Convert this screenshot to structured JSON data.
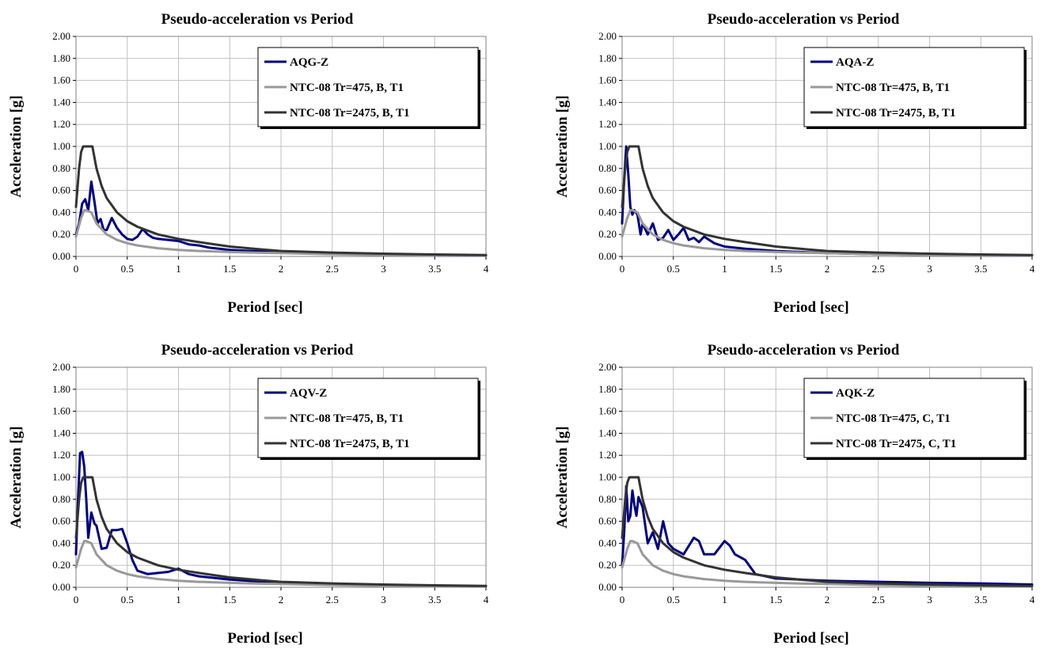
{
  "colors": {
    "record": "#000080",
    "spec_475": "#999999",
    "spec_2475": "#333333",
    "grid": "#c0c0c0"
  },
  "chart_data": [
    {
      "type": "line",
      "title": "Pseudo-acceleration vs Period",
      "xlabel": "Period [sec]",
      "ylabel": "Acceleration [g]",
      "xlim": [
        0,
        4
      ],
      "ylim": [
        0,
        2
      ],
      "xticks": [
        "0",
        "0.5",
        "1",
        "1.5",
        "2",
        "2.5",
        "3",
        "3.5",
        "4"
      ],
      "yticks": [
        "0.00",
        "0.20",
        "0.40",
        "0.60",
        "0.80",
        "1.00",
        "1.20",
        "1.40",
        "1.60",
        "1.80",
        "2.00"
      ],
      "grid": true,
      "legend_position": "top-right",
      "series": [
        {
          "name": "AQG-Z",
          "x": [
            0,
            0.03,
            0.06,
            0.09,
            0.12,
            0.15,
            0.18,
            0.21,
            0.24,
            0.27,
            0.3,
            0.35,
            0.4,
            0.45,
            0.5,
            0.55,
            0.6,
            0.65,
            0.7,
            0.75,
            0.8,
            0.9,
            1.0,
            1.1,
            1.2,
            1.3,
            1.5,
            1.7,
            2.0,
            2.5,
            3.0,
            3.5,
            4.0
          ],
          "y": [
            0.2,
            0.3,
            0.48,
            0.52,
            0.42,
            0.68,
            0.5,
            0.3,
            0.34,
            0.24,
            0.24,
            0.35,
            0.26,
            0.2,
            0.16,
            0.15,
            0.18,
            0.25,
            0.2,
            0.17,
            0.16,
            0.15,
            0.14,
            0.11,
            0.1,
            0.08,
            0.06,
            0.05,
            0.04,
            0.025,
            0.015,
            0.01,
            0.008
          ]
        },
        {
          "name": "NTC-08 Tr=475, B, T1",
          "x": [
            0,
            0.05,
            0.08,
            0.1,
            0.15,
            0.2,
            0.3,
            0.4,
            0.5,
            0.6,
            0.8,
            1.0,
            1.2,
            1.5,
            1.8,
            2.0,
            2.5,
            3.0,
            3.5,
            4.0
          ],
          "y": [
            0.18,
            0.35,
            0.42,
            0.42,
            0.4,
            0.3,
            0.2,
            0.15,
            0.12,
            0.1,
            0.075,
            0.06,
            0.05,
            0.04,
            0.033,
            0.03,
            0.02,
            0.013,
            0.01,
            0.008
          ]
        },
        {
          "name": "NTC-08 Tr=2475, B, T1",
          "x": [
            0,
            0.03,
            0.05,
            0.07,
            0.1,
            0.16,
            0.2,
            0.25,
            0.3,
            0.4,
            0.5,
            0.6,
            0.8,
            1.0,
            1.2,
            1.5,
            1.8,
            2.0,
            2.5,
            3.0,
            3.5,
            4.0
          ],
          "y": [
            0.45,
            0.8,
            0.95,
            1.0,
            1.0,
            1.0,
            0.8,
            0.64,
            0.53,
            0.4,
            0.32,
            0.27,
            0.2,
            0.16,
            0.13,
            0.09,
            0.065,
            0.05,
            0.035,
            0.025,
            0.018,
            0.012
          ]
        }
      ]
    },
    {
      "type": "line",
      "title": "Pseudo-acceleration vs Period",
      "xlabel": "Period [sec]",
      "ylabel": "Acceleration [g]",
      "xlim": [
        0,
        4
      ],
      "ylim": [
        0,
        2
      ],
      "xticks": [
        "0",
        "0.5",
        "1",
        "1.5",
        "2",
        "2.5",
        "3",
        "3.5",
        "4"
      ],
      "yticks": [
        "0.00",
        "0.20",
        "0.40",
        "0.60",
        "0.80",
        "1.00",
        "1.20",
        "1.40",
        "1.60",
        "1.80",
        "2.00"
      ],
      "grid": true,
      "legend_position": "top-right",
      "series": [
        {
          "name": "AQA-Z",
          "x": [
            0,
            0.02,
            0.04,
            0.06,
            0.08,
            0.1,
            0.12,
            0.15,
            0.18,
            0.2,
            0.25,
            0.3,
            0.35,
            0.4,
            0.45,
            0.5,
            0.55,
            0.6,
            0.65,
            0.7,
            0.75,
            0.8,
            0.9,
            1.0,
            1.1,
            1.2,
            1.5,
            2.0,
            2.5,
            3.0,
            3.5,
            4.0
          ],
          "y": [
            0.3,
            0.7,
            1.0,
            0.75,
            0.45,
            0.38,
            0.42,
            0.38,
            0.2,
            0.3,
            0.2,
            0.3,
            0.15,
            0.17,
            0.24,
            0.15,
            0.2,
            0.26,
            0.15,
            0.17,
            0.13,
            0.18,
            0.12,
            0.09,
            0.08,
            0.07,
            0.05,
            0.03,
            0.02,
            0.015,
            0.01,
            0.008
          ]
        },
        {
          "name": "NTC-08 Tr=475, B, T1",
          "x": [
            0,
            0.05,
            0.08,
            0.1,
            0.15,
            0.2,
            0.3,
            0.4,
            0.5,
            0.6,
            0.8,
            1.0,
            1.2,
            1.5,
            1.8,
            2.0,
            2.5,
            3.0,
            3.5,
            4.0
          ],
          "y": [
            0.18,
            0.35,
            0.42,
            0.42,
            0.4,
            0.3,
            0.2,
            0.15,
            0.12,
            0.1,
            0.075,
            0.06,
            0.05,
            0.04,
            0.033,
            0.03,
            0.02,
            0.013,
            0.01,
            0.008
          ]
        },
        {
          "name": "NTC-08 Tr=2475, B, T1",
          "x": [
            0,
            0.03,
            0.05,
            0.07,
            0.1,
            0.16,
            0.2,
            0.25,
            0.3,
            0.4,
            0.5,
            0.6,
            0.8,
            1.0,
            1.2,
            1.5,
            1.8,
            2.0,
            2.5,
            3.0,
            3.5,
            4.0
          ],
          "y": [
            0.45,
            0.8,
            0.95,
            1.0,
            1.0,
            1.0,
            0.8,
            0.64,
            0.53,
            0.4,
            0.32,
            0.27,
            0.2,
            0.16,
            0.13,
            0.09,
            0.065,
            0.05,
            0.035,
            0.025,
            0.018,
            0.012
          ]
        }
      ]
    },
    {
      "type": "line",
      "title": "Pseudo-acceleration vs Period",
      "xlabel": "Period [sec]",
      "ylabel": "Acceleration [g]",
      "xlim": [
        0,
        4
      ],
      "ylim": [
        0,
        2
      ],
      "xticks": [
        "0",
        "0.5",
        "1",
        "1.5",
        "2",
        "2.5",
        "3",
        "3.5",
        "4"
      ],
      "yticks": [
        "0.00",
        "0.20",
        "0.40",
        "0.60",
        "0.80",
        "1.00",
        "1.20",
        "1.40",
        "1.60",
        "1.80",
        "2.00"
      ],
      "grid": true,
      "legend_position": "top-right",
      "series": [
        {
          "name": "AQV-Z",
          "x": [
            0,
            0.02,
            0.04,
            0.06,
            0.08,
            0.1,
            0.12,
            0.15,
            0.18,
            0.2,
            0.25,
            0.3,
            0.35,
            0.4,
            0.45,
            0.5,
            0.55,
            0.6,
            0.7,
            0.8,
            0.9,
            1.0,
            1.1,
            1.2,
            1.5,
            2.0,
            2.5,
            3.0,
            3.5,
            4.0
          ],
          "y": [
            0.3,
            0.8,
            1.22,
            1.23,
            1.1,
            0.8,
            0.45,
            0.68,
            0.58,
            0.56,
            0.35,
            0.36,
            0.52,
            0.52,
            0.53,
            0.4,
            0.25,
            0.15,
            0.12,
            0.13,
            0.14,
            0.17,
            0.12,
            0.1,
            0.07,
            0.04,
            0.03,
            0.02,
            0.012,
            0.008
          ]
        },
        {
          "name": "NTC-08 Tr=475, B, T1",
          "x": [
            0,
            0.05,
            0.08,
            0.1,
            0.15,
            0.2,
            0.3,
            0.4,
            0.5,
            0.6,
            0.8,
            1.0,
            1.2,
            1.5,
            1.8,
            2.0,
            2.5,
            3.0,
            3.5,
            4.0
          ],
          "y": [
            0.18,
            0.35,
            0.42,
            0.42,
            0.4,
            0.3,
            0.2,
            0.15,
            0.12,
            0.1,
            0.075,
            0.06,
            0.05,
            0.04,
            0.033,
            0.03,
            0.02,
            0.013,
            0.01,
            0.008
          ]
        },
        {
          "name": "NTC-08 Tr=2475, B, T1",
          "x": [
            0,
            0.03,
            0.05,
            0.07,
            0.1,
            0.16,
            0.2,
            0.25,
            0.3,
            0.4,
            0.5,
            0.6,
            0.8,
            1.0,
            1.2,
            1.5,
            1.8,
            2.0,
            2.5,
            3.0,
            3.5,
            4.0
          ],
          "y": [
            0.45,
            0.8,
            0.95,
            1.0,
            1.0,
            1.0,
            0.8,
            0.64,
            0.53,
            0.4,
            0.32,
            0.27,
            0.2,
            0.16,
            0.13,
            0.09,
            0.065,
            0.05,
            0.035,
            0.025,
            0.018,
            0.012
          ]
        }
      ]
    },
    {
      "type": "line",
      "title": "Pseudo-acceleration vs Period",
      "xlabel": "Period [sec]",
      "ylabel": "Acceleration [g]",
      "xlim": [
        0,
        4
      ],
      "ylim": [
        0,
        2
      ],
      "xticks": [
        "0",
        "0.5",
        "1",
        "1.5",
        "2",
        "2.5",
        "3",
        "3.5",
        "4"
      ],
      "yticks": [
        "0.00",
        "0.20",
        "0.40",
        "0.60",
        "0.80",
        "1.00",
        "1.20",
        "1.40",
        "1.60",
        "1.80",
        "2.00"
      ],
      "grid": true,
      "legend_position": "top-right",
      "series": [
        {
          "name": "AQK-Z",
          "x": [
            0,
            0.02,
            0.04,
            0.06,
            0.08,
            0.1,
            0.12,
            0.14,
            0.16,
            0.2,
            0.25,
            0.3,
            0.35,
            0.4,
            0.45,
            0.5,
            0.6,
            0.7,
            0.75,
            0.8,
            0.9,
            1.0,
            1.05,
            1.1,
            1.2,
            1.3,
            1.5,
            2.0,
            2.5,
            3.0,
            3.5,
            4.0
          ],
          "y": [
            0.2,
            0.5,
            0.92,
            0.6,
            0.65,
            0.88,
            0.75,
            0.65,
            0.82,
            0.73,
            0.4,
            0.5,
            0.35,
            0.6,
            0.4,
            0.35,
            0.3,
            0.45,
            0.42,
            0.3,
            0.3,
            0.42,
            0.38,
            0.3,
            0.25,
            0.12,
            0.08,
            0.06,
            0.05,
            0.04,
            0.035,
            0.025
          ]
        },
        {
          "name": "NTC-08 Tr=475, C, T1",
          "x": [
            0,
            0.05,
            0.08,
            0.1,
            0.15,
            0.2,
            0.3,
            0.4,
            0.5,
            0.6,
            0.8,
            1.0,
            1.2,
            1.5,
            1.8,
            2.0,
            2.5,
            3.0,
            3.5,
            4.0
          ],
          "y": [
            0.18,
            0.35,
            0.42,
            0.42,
            0.4,
            0.3,
            0.2,
            0.15,
            0.12,
            0.1,
            0.075,
            0.06,
            0.05,
            0.04,
            0.033,
            0.03,
            0.02,
            0.013,
            0.01,
            0.008
          ]
        },
        {
          "name": "NTC-08 Tr=2475, C, T1",
          "x": [
            0,
            0.03,
            0.05,
            0.07,
            0.1,
            0.16,
            0.2,
            0.25,
            0.3,
            0.4,
            0.5,
            0.6,
            0.8,
            1.0,
            1.2,
            1.5,
            1.8,
            2.0,
            2.5,
            3.0,
            3.5,
            4.0
          ],
          "y": [
            0.45,
            0.8,
            0.95,
            1.0,
            1.0,
            1.0,
            0.8,
            0.64,
            0.53,
            0.4,
            0.32,
            0.27,
            0.2,
            0.16,
            0.13,
            0.09,
            0.065,
            0.05,
            0.035,
            0.025,
            0.018,
            0.012
          ]
        }
      ]
    }
  ]
}
